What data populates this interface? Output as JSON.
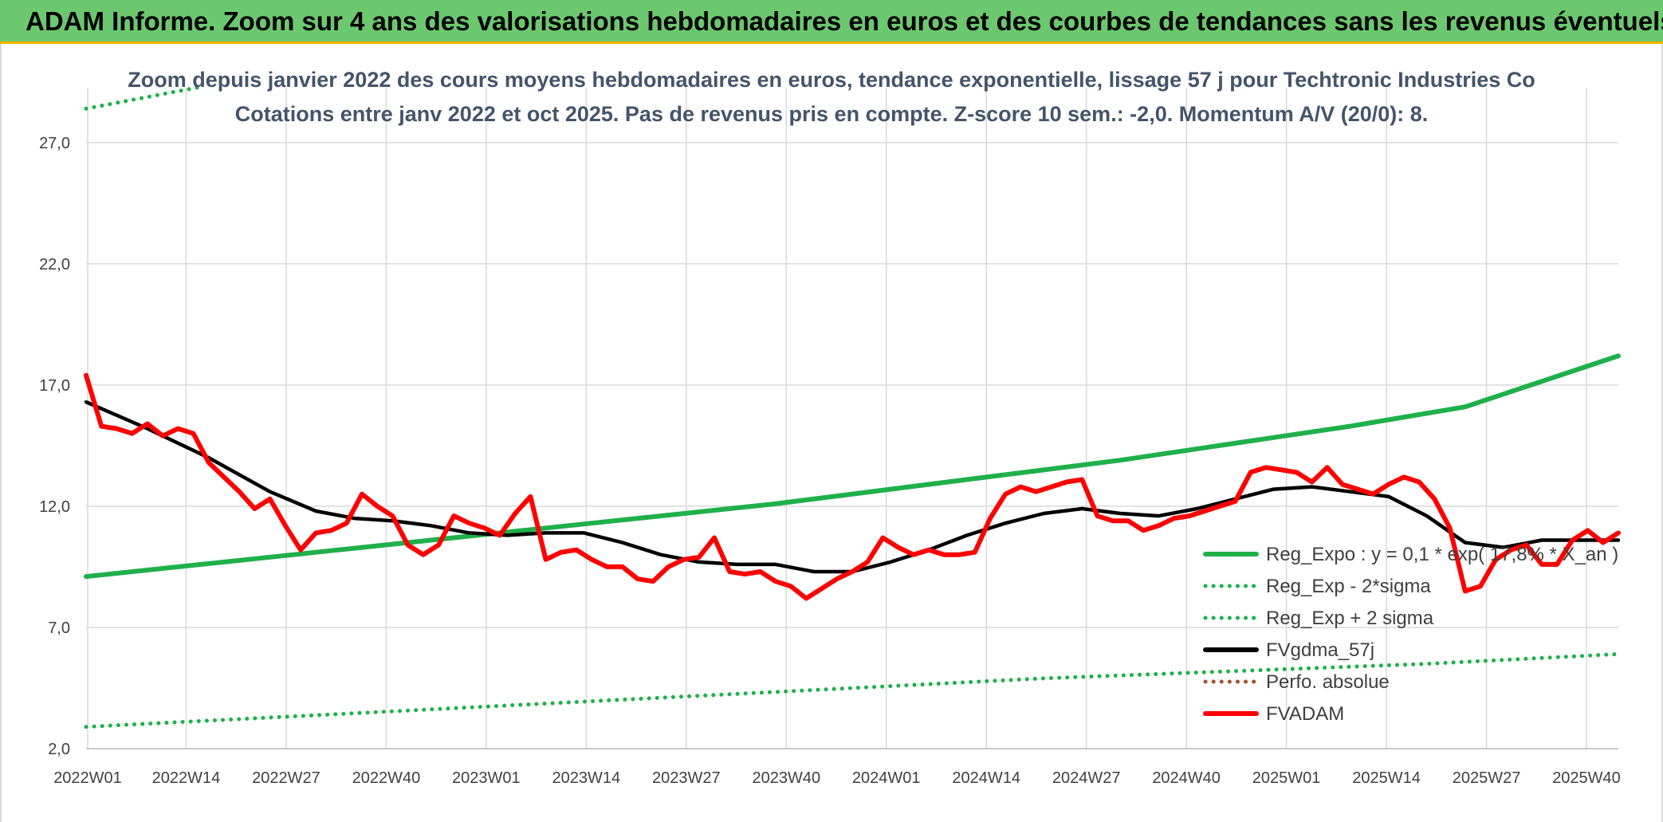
{
  "header": {
    "title": "ADAM Informe. Zoom sur 4 ans des valorisations hebdomadaires en euros et des courbes de tendances sans les revenus éventuels"
  },
  "colors": {
    "green": "#1fb04a",
    "black": "#000000",
    "red": "#ff0000",
    "brown": "#a0522d",
    "banner": "#6cc86e"
  },
  "chart_data": {
    "type": "line",
    "title": "Zoom depuis janvier 2022 des cours moyens hebdomadaires en euros, tendance exponentielle, lissage 57 j pour Techtronic Industries Co",
    "subtitle": "Cotations entre janv 2022 et oct 2025. Pas de revenus pris en compte. Z-score 10 sem.: -2,0. Momentum A/V (20/0): 8.",
    "x_ticks": [
      "2022W01",
      "2022W14",
      "2022W27",
      "2022W40",
      "2023W01",
      "2023W14",
      "2023W27",
      "2023W40",
      "2024W01",
      "2024W14",
      "2024W27",
      "2024W40",
      "2025W01",
      "2025W14",
      "2025W27",
      "2025W40"
    ],
    "y_ticks": [
      "2,0",
      "7,0",
      "12,0",
      "17,0",
      "22,0",
      "27,0"
    ],
    "ylim": [
      2,
      29
    ],
    "week_range": [
      0,
      200
    ],
    "legend": {
      "placement": "right",
      "entries": [
        "Reg_Expo : y = 0,1 * exp( 17,8% * X_an )",
        "Reg_Exp - 2*sigma",
        "Reg_Exp + 2 sigma",
        "FVgdma_57j",
        "Perfo. absolue",
        "FVADAM"
      ]
    },
    "series": [
      {
        "name": "Reg_Expo : y = 0,1 * exp( 17,8% * X_an )",
        "style": "solid",
        "color": "#1fb04a",
        "x": [
          0,
          15,
          30,
          45,
          60,
          75,
          90,
          105,
          120,
          135,
          150,
          165,
          180,
          200
        ],
        "y": [
          9.1,
          9.6,
          10.1,
          10.6,
          11.1,
          11.6,
          12.1,
          12.7,
          13.3,
          13.9,
          14.6,
          15.3,
          16.1,
          18.2
        ]
      },
      {
        "name": "Reg_Exp - 2*sigma",
        "style": "dotted",
        "color": "#1fb04a",
        "x": [
          0,
          25,
          50,
          75,
          100,
          125,
          150,
          175,
          200
        ],
        "y": [
          2.9,
          3.3,
          3.7,
          4.1,
          4.5,
          4.9,
          5.2,
          5.5,
          5.9
        ]
      },
      {
        "name": "Reg_Exp + 2 sigma",
        "style": "dotted",
        "color": "#1fb04a",
        "x": [
          0,
          5,
          10,
          15
        ],
        "y": [
          28.4,
          28.7,
          29.0,
          29.3
        ]
      },
      {
        "name": "FVgdma_57j",
        "style": "solid",
        "color": "#000000",
        "x": [
          0,
          8,
          16,
          24,
          30,
          35,
          40,
          45,
          50,
          55,
          60,
          65,
          70,
          75,
          80,
          85,
          90,
          95,
          100,
          105,
          110,
          115,
          120,
          125,
          130,
          135,
          140,
          145,
          150,
          155,
          160,
          165,
          170,
          175,
          180,
          185,
          190,
          195,
          200
        ],
        "y": [
          16.3,
          15.2,
          14.0,
          12.6,
          11.8,
          11.5,
          11.4,
          11.2,
          10.9,
          10.8,
          10.9,
          10.9,
          10.5,
          10.0,
          9.7,
          9.6,
          9.6,
          9.3,
          9.3,
          9.7,
          10.2,
          10.8,
          11.3,
          11.7,
          11.9,
          11.7,
          11.6,
          11.9,
          12.3,
          12.7,
          12.8,
          12.6,
          12.4,
          11.6,
          10.5,
          10.3,
          10.6,
          10.6,
          10.6
        ]
      },
      {
        "name": "FVADAM",
        "style": "solid",
        "color": "#ff0000",
        "x": [
          0,
          2,
          4,
          6,
          8,
          10,
          12,
          14,
          16,
          18,
          20,
          22,
          24,
          26,
          28,
          30,
          32,
          34,
          36,
          38,
          40,
          42,
          44,
          46,
          48,
          50,
          52,
          54,
          56,
          58,
          60,
          62,
          64,
          66,
          68,
          70,
          72,
          74,
          76,
          78,
          80,
          82,
          84,
          86,
          88,
          90,
          92,
          94,
          96,
          98,
          100,
          102,
          104,
          106,
          108,
          110,
          112,
          114,
          116,
          118,
          120,
          122,
          124,
          126,
          128,
          130,
          132,
          134,
          136,
          138,
          140,
          142,
          144,
          146,
          148,
          150,
          152,
          154,
          156,
          158,
          160,
          162,
          164,
          166,
          168,
          170,
          172,
          174,
          176,
          178,
          180,
          182,
          184,
          186,
          188,
          190,
          192,
          194,
          196,
          198,
          200
        ],
        "y": [
          17.4,
          15.3,
          15.2,
          15.0,
          15.4,
          14.9,
          15.2,
          15.0,
          13.8,
          13.2,
          12.6,
          11.9,
          12.3,
          11.2,
          10.2,
          10.9,
          11.0,
          11.3,
          12.5,
          12.0,
          11.6,
          10.4,
          10.0,
          10.4,
          11.6,
          11.3,
          11.1,
          10.8,
          11.7,
          12.4,
          9.8,
          10.1,
          10.2,
          9.8,
          9.5,
          9.5,
          9.0,
          8.9,
          9.5,
          9.8,
          9.9,
          10.7,
          9.3,
          9.2,
          9.3,
          8.9,
          8.7,
          8.2,
          8.6,
          9.0,
          9.3,
          9.7,
          10.7,
          10.3,
          10.0,
          10.2,
          10.0,
          10.0,
          10.1,
          11.5,
          12.5,
          12.8,
          12.6,
          12.8,
          13.0,
          13.1,
          11.6,
          11.4,
          11.4,
          11.0,
          11.2,
          11.5,
          11.6,
          11.8,
          12.0,
          12.2,
          13.4,
          13.6,
          13.5,
          13.4,
          13.0,
          13.6,
          12.9,
          12.7,
          12.5,
          12.9,
          13.2,
          13.0,
          12.3,
          11.1,
          8.5,
          8.7,
          9.8,
          10.2,
          10.4,
          9.6,
          9.6,
          10.6,
          11.0,
          10.5,
          10.9
        ]
      },
      {
        "name": "Perfo. absolue",
        "style": "dotted",
        "color": "#a0522d",
        "x": [],
        "y": []
      }
    ]
  }
}
